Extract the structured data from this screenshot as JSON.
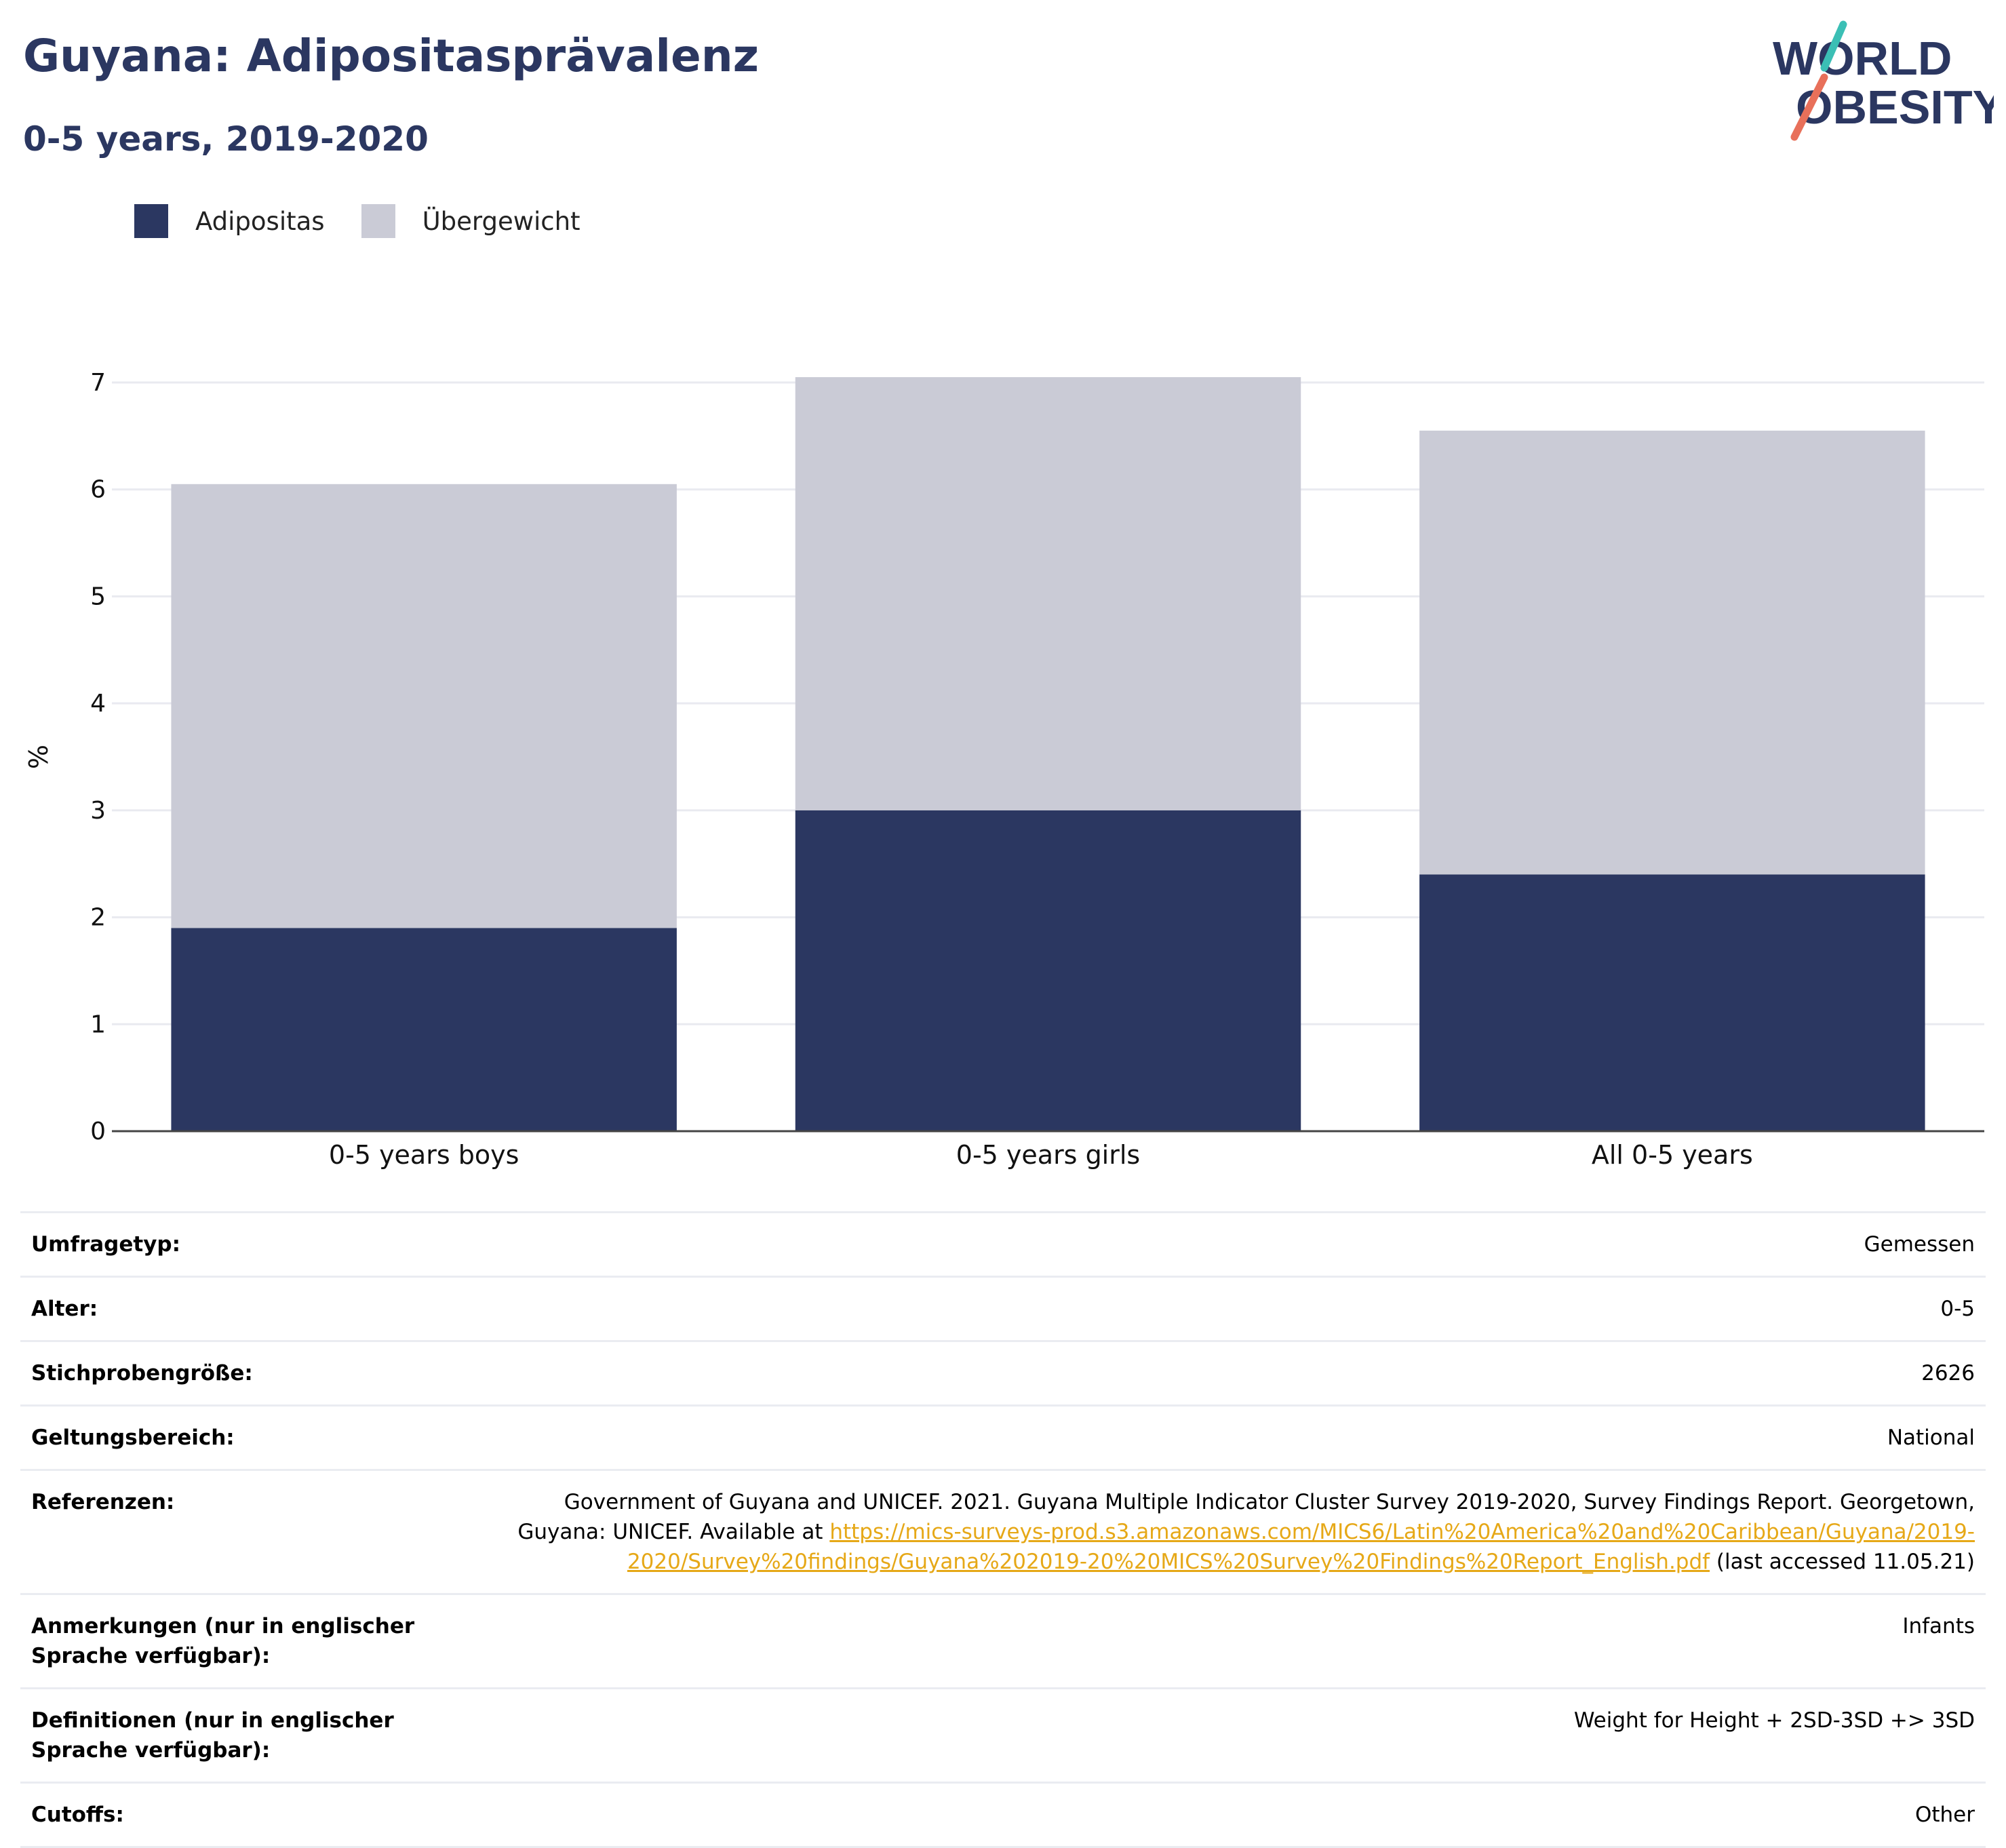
{
  "header": {
    "title": "Guyana: Adipositasprävalenz",
    "subtitle": "0-5 years, 2019-2020"
  },
  "logo": {
    "line1": "WORLD",
    "line2": "OBESITY",
    "colors": {
      "text": "#2b3761",
      "slash_top": "#3bbfb5",
      "slash_bottom": "#e8705a"
    }
  },
  "legend": [
    {
      "label": "Adipositas",
      "color": "#2b3761"
    },
    {
      "label": "Übergewicht",
      "color": "#cacbd6"
    }
  ],
  "chart_data": {
    "type": "bar",
    "stacked": true,
    "categories": [
      "0-5 years boys",
      "0-5 years girls",
      "All 0-5 years"
    ],
    "series": [
      {
        "name": "Adipositas",
        "values": [
          1.9,
          3.0,
          2.4
        ],
        "color": "#2b3761"
      },
      {
        "name": "Übergewicht",
        "values": [
          4.15,
          4.05,
          4.15
        ],
        "color": "#cacbd6"
      }
    ],
    "ylabel": "%",
    "xlabel": "",
    "ylim": [
      0,
      7
    ],
    "yticks": [
      "0",
      "1",
      "2",
      "3",
      "4",
      "5",
      "6",
      "7"
    ],
    "grid": true
  },
  "info": {
    "rows": [
      {
        "label": "Umfragetyp:",
        "value": "Gemessen"
      },
      {
        "label": "Alter:",
        "value": "0-5"
      },
      {
        "label": "Stichprobengröße:",
        "value": "2626"
      },
      {
        "label": "Geltungsbereich:",
        "value": "National"
      }
    ],
    "reference": {
      "label": "Referenzen:",
      "text_before": "Government of Guyana and UNICEF. 2021. Guyana Multiple Indicator Cluster Survey 2019-2020, Survey Findings Report. Georgetown, Guyana: UNICEF. Available at ",
      "link": "https://mics-surveys-prod.s3.amazonaws.com/MICS6/Latin%20America%20and%20Caribbean/Guyana/2019-2020/Survey%20findings/Guyana%202019-20%20MICS%20Survey%20Findings%20Report_English.pdf",
      "text_after": " (last accessed 11.05.21)"
    },
    "rows2": [
      {
        "label": "Anmerkungen (nur in englischer Sprache verfügbar):",
        "value": "Infants"
      },
      {
        "label": "Definitionen (nur in englischer Sprache verfügbar):",
        "value": "Weight for Height + 2SD-3SD +> 3SD"
      },
      {
        "label": "Cutoffs:",
        "value": "Other"
      }
    ]
  }
}
